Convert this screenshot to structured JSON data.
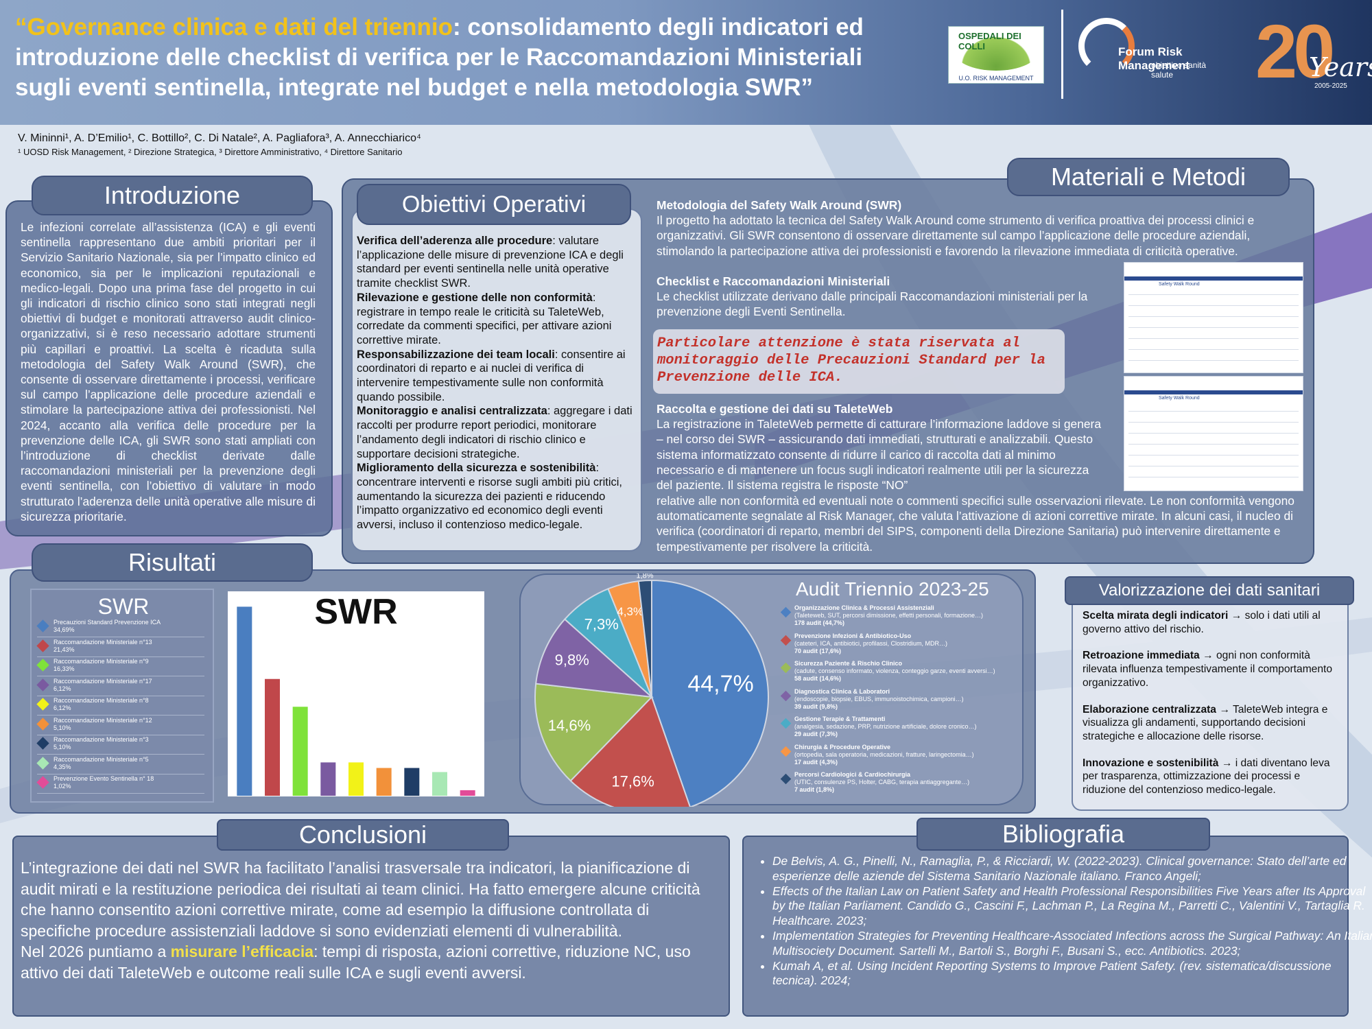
{
  "header": {
    "title_open_quote": "“",
    "title_highlight": "Governance clinica e dati del triennio",
    "title_rest": ": consolidamento degli indicatori ed introduzione delle checklist di verifica per le Raccomandazioni Ministeriali sugli eventi sentinella, integrate nel budget e nella metodologia SWR”",
    "authors": "V. Mininni¹, A. D’Emilio¹, C. Bottillo², C. Di Natale², A. Pagliafora³, A. Annecchiarico⁴",
    "affiliations": "¹ UOSD Risk Management, ² Direzione Strategica, ³ Direttore Amministrativo, ⁴ Direttore Sanitario",
    "logo_hospital_name": "OSPEDALI DEI COLLI",
    "logo_hospital_unit": "U.O. RISK MANAGEMENT",
    "logo_forum_name": "Forum Risk Management",
    "logo_forum_sub": "obiettivo sanità salute",
    "logo_years_number": "20",
    "logo_years_word": "Years",
    "logo_years_range": "2005-2025",
    "accent_color": "#f2c21a"
  },
  "introduzione": {
    "title": "Introduzione",
    "text": "Le infezioni correlate all’assistenza (ICA) e gli eventi sentinella rappresentano due ambiti prioritari per il Servizio Sanitario Nazionale, sia per l’impatto clinico ed economico, sia per le implicazioni reputazionali e medico-legali. Dopo una prima fase del progetto in cui gli indicatori di rischio clinico sono stati integrati negli obiettivi di budget e monitorati attraverso audit clinico-organizzativi, si è reso necessario adottare strumenti più capillari e proattivi. La scelta è ricaduta sulla metodologia del Safety Walk Around (SWR), che consente di osservare direttamente i processi, verificare sul campo l’applicazione delle procedure aziendali e stimolare la partecipazione attiva dei professionisti. Nel 2024, accanto alla verifica delle procedure per la prevenzione delle ICA, gli SWR sono stati ampliati con l’introduzione di checklist derivate dalle raccomandazioni ministeriali per la prevenzione degli eventi sentinella, con l’obiettivo di valutare in modo strutturato l’aderenza delle unità operative alle misure di sicurezza prioritarie."
  },
  "obiettivi": {
    "title": "Obiettivi Operativi",
    "items": [
      {
        "head": "Verifica dell’aderenza alle procedure",
        "body": ": valutare l’applicazione delle misure di prevenzione ICA e degli standard per eventi sentinella nelle unità operative tramite checklist SWR."
      },
      {
        "head": "Rilevazione e gestione delle non conformità",
        "body": ": registrare in tempo reale le criticità su TaleteWeb, corredate da commenti specifici, per attivare azioni correttive mirate."
      },
      {
        "head": "Responsabilizzazione dei team locali",
        "body": ": consentire ai coordinatori di reparto e ai nuclei di verifica di intervenire tempestivamente sulle non conformità quando possibile."
      },
      {
        "head": "Monitoraggio e analisi centralizzata",
        "body": ": aggregare i dati raccolti per produrre report periodici, monitorare l’andamento degli indicatori di rischio clinico e supportare decisioni strategiche."
      },
      {
        "head": "Miglioramento della sicurezza e sostenibilità",
        "body": ": concentrare interventi e risorse sugli ambiti più critici, aumentando la sicurezza dei pazienti e riducendo l’impatto organizzativo ed economico degli eventi avversi, incluso il contenzioso medico-legale."
      }
    ]
  },
  "materiali": {
    "title": "Materiali e Metodi",
    "swr_head": "Metodologia del Safety Walk Around (SWR)",
    "swr_text": "Il progetto ha adottato la tecnica del Safety Walk Around come strumento di verifica proattiva dei processi clinici e organizzativi. Gli SWR consentono di osservare direttamente sul campo l’applicazione delle procedure aziendali, stimolando la partecipazione attiva dei professionisti e favorendo la rilevazione immediata di criticità operative.",
    "checklist_head": "Checklist e Raccomandazioni Ministeriali",
    "checklist_text": "Le checklist utilizzate derivano dalle principali Raccomandazioni ministeriali per la prevenzione degli Eventi Sentinella.",
    "highlight": "Particolare attenzione è stata riservata al monitoraggio delle Precauzioni Standard per la Prevenzione delle ICA.",
    "talete_head": "Raccolta e gestione dei dati su TaleteWeb",
    "talete_text_1": "La registrazione in TaleteWeb permette di catturare l’informazione laddove si genera – nel corso dei SWR – assicurando dati immediati, strutturati e analizzabili. Questo sistema informatizzato consente di ridurre il carico di raccolta dati al minimo necessario e di mantenere un focus sugli indicatori realmente utili per la sicurezza del paziente. Il sistema registra le risposte “NO”",
    "talete_text_2": "relative alle non conformità ed eventuali note o commenti specifici sulle osservazioni rilevate. Le non conformità vengono automaticamente segnalate al Risk Manager, che valuta l’attivazione di azioni correttive mirate. In alcuni casi, il nucleo di verifica (coordinatori di reparto, membri del SIPS, componenti della Direzione Sanitaria) può intervenire direttamente e tempestivamente per risolvere la criticità.",
    "screenshot_label": "Safety Walk Round",
    "highlight_color": "#c3312a"
  },
  "risultati": {
    "title": "Risultati",
    "swr_legend_title": "SWR",
    "swr_chart_title": "SWR",
    "audit_title": "Audit Triennio 2023-25"
  },
  "chart_data": [
    {
      "type": "bar",
      "title": "SWR",
      "categories": [
        "Precauzioni Standard Prevenzione ICA",
        "Raccomandazione Ministeriale n°13",
        "Raccomandazione Ministeriale n°9",
        "Raccomandazione Ministeriale n°17",
        "Raccomandazione Ministeriale n°8",
        "Raccomandazione Ministeriale n°12",
        "Raccomandazione Ministeriale n°3",
        "Raccomandazione Ministeriale n°5",
        "Prevenzione Evento Sentinella n° 18"
      ],
      "value_labels": [
        "34,69%",
        "21,43%",
        "16,33%",
        "6,12%",
        "6,12%",
        "5,10%",
        "5,10%",
        "4,35%",
        "1,02%"
      ],
      "values": [
        34.69,
        21.43,
        16.33,
        6.12,
        6.12,
        5.1,
        5.1,
        4.35,
        1.02
      ],
      "colors": [
        "#4a7ec0",
        "#c0474a",
        "#7fe23a",
        "#7a5aa0",
        "#f2f218",
        "#f2913a",
        "#1f3d66",
        "#a8e8b4",
        "#e24c98"
      ],
      "ylim": [
        0,
        36
      ],
      "grid": false,
      "legend": "left"
    },
    {
      "type": "pie",
      "title": "Audit Triennio 2023-25",
      "slices": [
        {
          "label": "Organizzazione Clinica & Processi Assistenziali",
          "detail": "(Taleteweb, SUT, percorsi dimissione, effetti personali, formazione…)",
          "count": "178 audit (44,7%)",
          "value": 44.7,
          "pct_label": "44,7%",
          "color": "#4d80c2"
        },
        {
          "label": "Prevenzione Infezioni & Antibiotico-Uso",
          "detail": "(cateteri, ICA, antibiotici, profilassi, Clostridium, MDR…)",
          "count": "70 audit (17,6%)",
          "value": 17.6,
          "pct_label": "17,6%",
          "color": "#c2504d"
        },
        {
          "label": "Sicurezza Paziente & Rischio Clinico",
          "detail": "(cadute, consenso informato, violenza, conteggio garze, eventi avversi…)",
          "count": "58 audit (14,6%)",
          "value": 14.6,
          "pct_label": "14,6%",
          "color": "#9bbb59"
        },
        {
          "label": "Diagnostica Clinica & Laboratori",
          "detail": "(endoscopie, biopsie, EBUS, immunoistochimica, campioni…)",
          "count": "39 audit (9,8%)",
          "value": 9.8,
          "pct_label": "9,8%",
          "color": "#7f63a5"
        },
        {
          "label": "Gestione Terapie & Trattamenti",
          "detail": "(analgesia, sedazione, PRP, nutrizione artificiale, dolore cronico…)",
          "count": "29 audit (7,3%)",
          "value": 7.3,
          "pct_label": "7,3%",
          "color": "#4bacc6"
        },
        {
          "label": "Chirurgia & Procedure Operative",
          "detail": "(ortopedia, sala operatoria, medicazioni, fratture, laringectomia…)",
          "count": "17 audit (4,3%)",
          "value": 4.3,
          "pct_label": "4,3%",
          "color": "#f79646"
        },
        {
          "label": "Percorsi Cardiologici & Cardiochirurgia",
          "detail": "(UTIC, consulenze PS, Holter, CABG, terapia antiaggregante…)",
          "count": "7 audit (1,8%)",
          "value": 1.8,
          "pct_label": "1,8%",
          "color": "#2c4d75"
        }
      ],
      "legend": "right"
    }
  ],
  "valorizzazione": {
    "title": "Valorizzazione dei dati sanitari",
    "items": [
      {
        "head": "Scelta mirata degli indicatori",
        "body": " → solo i dati utili al governo attivo del rischio."
      },
      {
        "head": "Retroazione immediata",
        "body": " → ogni non conformità rilevata influenza tempestivamente il comportamento organizzativo."
      },
      {
        "head": "Elaborazione centralizzata",
        "body": " → TaleteWeb integra e visualizza gli andamenti, supportando decisioni strategiche e allocazione delle risorse."
      },
      {
        "head": "Innovazione e sostenibilità",
        "body": " → i dati diventano leva per trasparenza, ottimizzazione dei processi e riduzione del contenzioso medico-legale."
      }
    ]
  },
  "conclusioni": {
    "title": "Conclusioni",
    "text_1": "L’integrazione dei dati nel SWR ha facilitato l’analisi trasversale tra indicatori, la pianificazione di audit mirati e la restituzione periodica dei risultati ai team clinici. Ha fatto emergere alcune criticità che hanno consentito azioni correttive mirate, come ad esempio la diffusione controllata di specifiche procedure assistenziali laddove si sono evidenziati elementi di vulnerabilità.",
    "text_2_pre": "Nel 2026 puntiamo a ",
    "text_2_highlight": "misurare l’efficacia",
    "text_2_post": ": tempi di risposta, azioni correttive, riduzione NC, uso attivo dei dati TaleteWeb e outcome reali sulle ICA e sugli eventi avversi."
  },
  "bibliografia": {
    "title": "Bibliografia",
    "items": [
      "De Belvis, A. G., Pinelli, N., Ramaglia, P., & Ricciardi, W. (2022-2023). Clinical governance: Stato dell’arte ed esperienze delle aziende del Sistema Sanitario Nazionale italiano. Franco Angeli;",
      "Effects of the Italian Law on Patient Safety and Health Professional Responsibilities Five Years after Its Approval by the Italian Parliament. Candido G., Cascini F., Lachman P., La Regina M., Parretti C., Valentini V., Tartaglia R. Healthcare. 2023;",
      "Implementation Strategies for Preventing Healthcare-Associated Infections across the Surgical Pathway: An Italian Multisociety Document. Sartelli M., Bartoli S., Borghi F., Busani S., ecc. Antibiotics. 2023;",
      "Kumah A, et al. Using Incident Reporting Systems to Improve Patient Safety. (rev. sistematica/discussione tecnica). 2024;"
    ]
  }
}
